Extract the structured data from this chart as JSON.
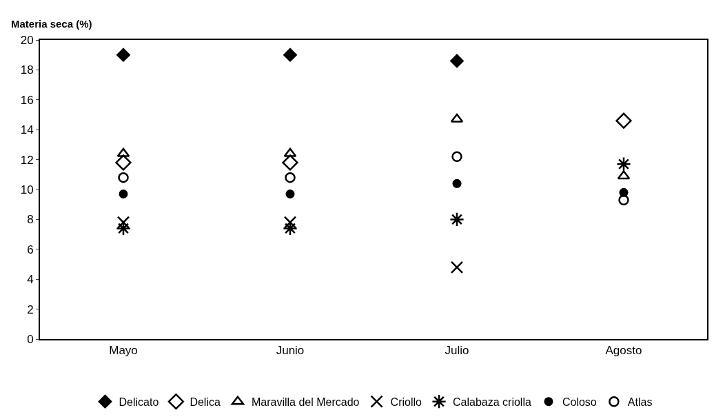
{
  "chart_data": {
    "type": "scatter",
    "ylabel": "Materia seca (%)",
    "categories": [
      "Mayo",
      "Junio",
      "Julio",
      "Agosto"
    ],
    "ylim": [
      0,
      20
    ],
    "yticks": [
      0,
      2,
      4,
      6,
      8,
      10,
      12,
      14,
      16,
      18,
      20
    ],
    "legend": "bottom",
    "series": [
      {
        "name": "Delicato",
        "color": "#000000",
        "marker": "diamond",
        "values": [
          19.0,
          19.0,
          18.6,
          null
        ]
      },
      {
        "name": "Delica",
        "color": "#000000",
        "marker": "diamond",
        "values": [
          11.8,
          11.8,
          null,
          14.6
        ]
      },
      {
        "name": "Maravilla del Mercado",
        "color": "#000000",
        "marker": "triangle",
        "values": [
          12.4,
          12.4,
          14.7,
          10.9
        ]
      },
      {
        "name": "Criollo",
        "color": "#000000",
        "marker": "cross",
        "values": [
          7.8,
          7.8,
          4.8,
          null
        ]
      },
      {
        "name": "Calabaza criolla",
        "color": "#000000",
        "marker": "cross",
        "values": [
          7.4,
          7.4,
          8.0,
          11.7
        ]
      },
      {
        "name": "Coloso",
        "color": "#000000",
        "marker": "circle",
        "values": [
          9.7,
          9.7,
          10.4,
          9.8
        ]
      },
      {
        "name": "Atlas",
        "color": "#000000",
        "marker": "circle",
        "values": [
          10.8,
          10.8,
          12.2,
          9.3
        ]
      }
    ]
  }
}
